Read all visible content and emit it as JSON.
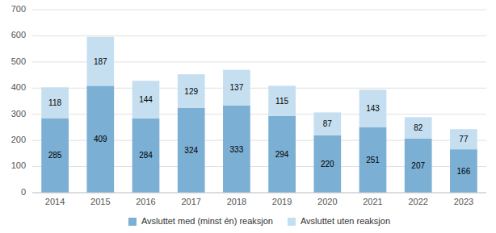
{
  "chart_data": {
    "type": "bar",
    "stacked": true,
    "categories": [
      "2014",
      "2015",
      "2016",
      "2017",
      "2018",
      "2019",
      "2020",
      "2021",
      "2022",
      "2023"
    ],
    "series": [
      {
        "name": "Avsluttet med (minst én) reaksjon",
        "color": "#7bafd4",
        "values": [
          285,
          409,
          284,
          324,
          333,
          294,
          220,
          251,
          207,
          166
        ]
      },
      {
        "name": "Avsluttet uten reaksjon",
        "color": "#c5dff0",
        "values": [
          118,
          187,
          144,
          129,
          137,
          115,
          87,
          143,
          82,
          77
        ]
      }
    ],
    "ylim": [
      0,
      700
    ],
    "yticks": [
      0,
      100,
      200,
      300,
      400,
      500,
      600,
      700
    ],
    "grid": true,
    "legend": "bottom",
    "data_labels": true
  }
}
